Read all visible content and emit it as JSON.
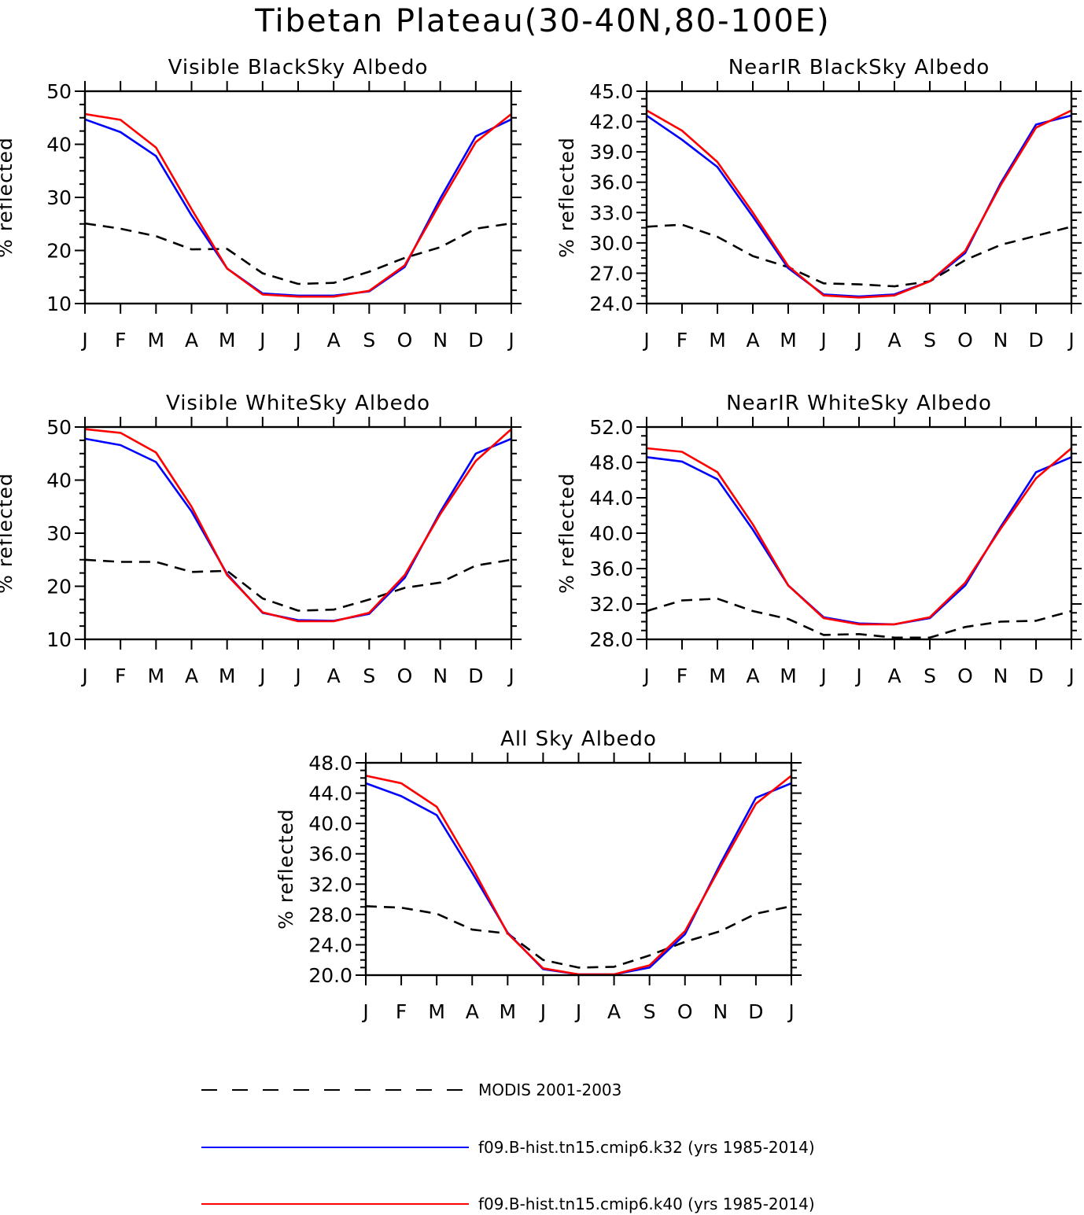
{
  "figure_title": "Tibetan Plateau(30-40N,80-100E)",
  "legend": [
    {
      "label": "MODIS 2001-2003",
      "color": "#000000",
      "dash": true
    },
    {
      "label": "f09.B-hist.tn15.cmip6.k32 (yrs 1985-2014)",
      "color": "#0000ff",
      "dash": false
    },
    {
      "label": "f09.B-hist.tn15.cmip6.k40 (yrs 1985-2014)",
      "color": "#ff0000",
      "dash": false
    }
  ],
  "chart_data": [
    {
      "type": "line",
      "title": "Visible BlackSky Albedo",
      "ylabel": "% reflected",
      "xlabel": "",
      "categories": [
        "J",
        "F",
        "M",
        "A",
        "M",
        "J",
        "J",
        "A",
        "S",
        "O",
        "N",
        "D",
        "J"
      ],
      "ylim": [
        10,
        50
      ],
      "yticks": [
        "10",
        "20",
        "30",
        "40",
        "50"
      ],
      "series": [
        {
          "name": "MODIS 2001-2003",
          "values": [
            25.1,
            24.1,
            22.7,
            20.2,
            20.3,
            15.7,
            13.7,
            13.9,
            16.0,
            18.6,
            20.6,
            24.1,
            25.1
          ]
        },
        {
          "name": "f09.B-hist.tn15.cmip6.k32 (yrs 1985-2014)",
          "values": [
            44.7,
            42.3,
            37.8,
            26.6,
            16.6,
            11.9,
            11.5,
            11.5,
            12.3,
            16.9,
            29.8,
            41.5,
            44.7
          ]
        },
        {
          "name": "f09.B-hist.tn15.cmip6.k40 (yrs 1985-2014)",
          "values": [
            45.7,
            44.6,
            39.4,
            27.8,
            16.6,
            11.7,
            11.3,
            11.3,
            12.4,
            17.2,
            29.0,
            40.4,
            45.7
          ]
        }
      ]
    },
    {
      "type": "line",
      "title": "NearIR BlackSky Albedo",
      "ylabel": "% reflected",
      "xlabel": "",
      "categories": [
        "J",
        "F",
        "M",
        "A",
        "M",
        "J",
        "J",
        "A",
        "S",
        "O",
        "N",
        "D",
        "J"
      ],
      "ylim": [
        24.0,
        45.0
      ],
      "yticks": [
        "24.0",
        "27.0",
        "30.0",
        "33.0",
        "36.0",
        "39.0",
        "42.0",
        "45.0"
      ],
      "series": [
        {
          "name": "MODIS 2001-2003",
          "values": [
            31.6,
            31.8,
            30.6,
            28.7,
            27.6,
            26.0,
            25.9,
            25.7,
            26.2,
            28.3,
            29.8,
            30.7,
            31.6
          ]
        },
        {
          "name": "f09.B-hist.tn15.cmip6.k32 (yrs 1985-2014)",
          "values": [
            42.6,
            40.2,
            37.5,
            32.6,
            27.5,
            24.9,
            24.7,
            24.9,
            26.2,
            29.0,
            35.9,
            41.7,
            42.6
          ]
        },
        {
          "name": "f09.B-hist.tn15.cmip6.k40 (yrs 1985-2014)",
          "values": [
            43.1,
            41.1,
            38.0,
            33.0,
            27.7,
            24.8,
            24.6,
            24.8,
            26.2,
            29.2,
            35.7,
            41.4,
            43.1
          ]
        }
      ]
    },
    {
      "type": "line",
      "title": "Visible WhiteSky Albedo",
      "ylabel": "% reflected",
      "xlabel": "",
      "categories": [
        "J",
        "F",
        "M",
        "A",
        "M",
        "J",
        "J",
        "A",
        "S",
        "O",
        "N",
        "D",
        "J"
      ],
      "ylim": [
        10,
        50
      ],
      "yticks": [
        "10",
        "20",
        "30",
        "40",
        "50"
      ],
      "series": [
        {
          "name": "MODIS 2001-2003",
          "values": [
            25.0,
            24.6,
            24.6,
            22.7,
            22.9,
            17.7,
            15.4,
            15.6,
            17.5,
            19.7,
            20.7,
            23.9,
            25.0
          ]
        },
        {
          "name": "f09.B-hist.tn15.cmip6.k32 (yrs 1985-2014)",
          "values": [
            47.8,
            46.6,
            43.4,
            34.1,
            22.3,
            15.0,
            13.6,
            13.5,
            14.8,
            21.6,
            34.0,
            45.0,
            47.8
          ]
        },
        {
          "name": "f09.B-hist.tn15.cmip6.k40 (yrs 1985-2014)",
          "values": [
            49.6,
            48.9,
            45.2,
            35.0,
            22.1,
            15.1,
            13.4,
            13.4,
            15.0,
            22.1,
            33.6,
            43.6,
            49.6
          ]
        }
      ]
    },
    {
      "type": "line",
      "title": "NearIR WhiteSky Albedo",
      "ylabel": "% reflected",
      "xlabel": "",
      "categories": [
        "J",
        "F",
        "M",
        "A",
        "M",
        "J",
        "J",
        "A",
        "S",
        "O",
        "N",
        "D",
        "J"
      ],
      "ylim": [
        28.0,
        52.0
      ],
      "yticks": [
        "28.0",
        "32.0",
        "36.0",
        "40.0",
        "44.0",
        "48.0",
        "52.0"
      ],
      "series": [
        {
          "name": "MODIS 2001-2003",
          "values": [
            31.2,
            32.4,
            32.6,
            31.2,
            30.3,
            28.5,
            28.6,
            28.2,
            28.2,
            29.4,
            30.0,
            30.1,
            31.2
          ]
        },
        {
          "name": "f09.B-hist.tn15.cmip6.k32 (yrs 1985-2014)",
          "values": [
            48.6,
            48.1,
            46.1,
            40.4,
            34.1,
            30.5,
            29.8,
            29.7,
            30.4,
            34.1,
            40.7,
            46.9,
            48.6
          ]
        },
        {
          "name": "f09.B-hist.tn15.cmip6.k40 (yrs 1985-2014)",
          "values": [
            49.6,
            49.2,
            46.9,
            41.0,
            34.1,
            30.4,
            29.7,
            29.7,
            30.5,
            34.4,
            40.5,
            46.2,
            49.6
          ]
        }
      ]
    },
    {
      "type": "line",
      "title": "All Sky Albedo",
      "ylabel": "% reflected",
      "xlabel": "",
      "categories": [
        "J",
        "F",
        "M",
        "A",
        "M",
        "J",
        "J",
        "A",
        "S",
        "O",
        "N",
        "D",
        "J"
      ],
      "ylim": [
        20.0,
        48.0
      ],
      "yticks": [
        "20.0",
        "24.0",
        "28.0",
        "32.0",
        "36.0",
        "40.0",
        "44.0",
        "48.0"
      ],
      "series": [
        {
          "name": "MODIS 2001-2003",
          "values": [
            29.1,
            28.9,
            28.1,
            26.0,
            25.5,
            22.0,
            21.0,
            21.1,
            22.6,
            24.4,
            25.8,
            28.1,
            29.1
          ]
        },
        {
          "name": "f09.B-hist.tn15.cmip6.k32 (yrs 1985-2014)",
          "values": [
            45.3,
            43.6,
            41.1,
            33.5,
            25.6,
            20.8,
            20.1,
            20.1,
            21.0,
            25.4,
            34.7,
            43.4,
            45.3
          ]
        },
        {
          "name": "f09.B-hist.tn15.cmip6.k40 (yrs 1985-2014)",
          "values": [
            46.3,
            45.3,
            42.2,
            34.2,
            25.5,
            20.9,
            20.1,
            20.1,
            21.3,
            25.8,
            34.3,
            42.6,
            46.3
          ]
        }
      ]
    }
  ]
}
